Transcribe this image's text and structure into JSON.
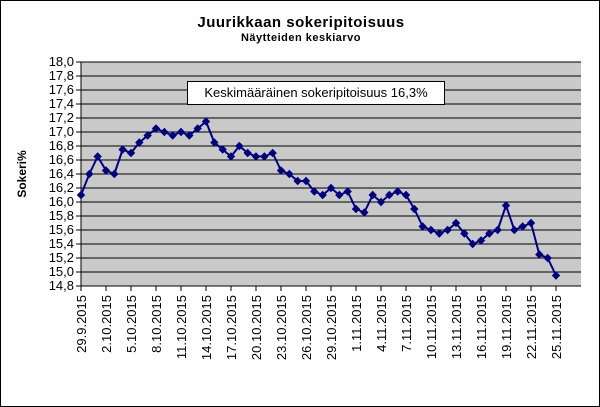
{
  "chart_data": {
    "type": "line",
    "title": "Juurikkaan sokeripitoisuus",
    "subtitle": "Näytteiden keskiarvo",
    "annotation": "Keskimääräinen sokeripitoisuus 16,3%",
    "ylabel": "Sokeri%",
    "xlabel": "",
    "ylim": [
      14.8,
      18.0
    ],
    "ytick_step": 0.2,
    "y_tick_labels": [
      "18,0",
      "17,8",
      "17,6",
      "17,4",
      "17,2",
      "17,0",
      "16,8",
      "16,6",
      "16,4",
      "16,2",
      "16,0",
      "15,8",
      "15,6",
      "15,4",
      "15,2",
      "15,0",
      "14,8"
    ],
    "x_tick_labels": [
      "29.9.2015",
      "2.10.2015",
      "5.10.2015",
      "8.10.2015",
      "11.10.2015",
      "14.10.2015",
      "17.10.2015",
      "20.10.2015",
      "23.10.2015",
      "26.10.2015",
      "29.10.2015",
      "1.11.2015",
      "4.11.2015",
      "7.11.2015",
      "10.11.2015",
      "13.11.2015",
      "16.11.2015",
      "19.11.2015",
      "22.11.2015",
      "25.11.2015"
    ],
    "points_per_tick": 3,
    "grid": true,
    "legend": "none",
    "plot_bg_color": "#c9c9c9",
    "gridline_color": "#000000",
    "axis_color": "#000000",
    "series": [
      {
        "name": "Sokeri%",
        "color": "#000080",
        "marker": "diamond",
        "values": [
          16.1,
          16.4,
          16.65,
          16.45,
          16.4,
          16.75,
          16.7,
          16.85,
          16.95,
          17.05,
          17.0,
          16.95,
          17.0,
          16.95,
          17.05,
          17.15,
          16.85,
          16.75,
          16.65,
          16.8,
          16.7,
          16.65,
          16.65,
          16.7,
          16.45,
          16.4,
          16.3,
          16.3,
          16.15,
          16.1,
          16.2,
          16.1,
          16.15,
          15.9,
          15.85,
          16.1,
          16.0,
          16.1,
          16.15,
          16.1,
          15.9,
          15.65,
          15.6,
          15.55,
          15.6,
          15.7,
          15.55,
          15.4,
          15.45,
          15.55,
          15.6,
          15.95,
          15.6,
          15.65,
          15.7,
          15.25,
          15.2,
          14.95
        ]
      }
    ]
  }
}
